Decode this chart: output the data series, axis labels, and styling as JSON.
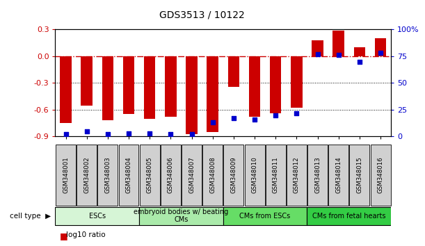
{
  "title": "GDS3513 / 10122",
  "samples": [
    "GSM348001",
    "GSM348002",
    "GSM348003",
    "GSM348004",
    "GSM348005",
    "GSM348006",
    "GSM348007",
    "GSM348008",
    "GSM348009",
    "GSM348010",
    "GSM348011",
    "GSM348012",
    "GSM348013",
    "GSM348014",
    "GSM348015",
    "GSM348016"
  ],
  "log10_ratio": [
    -0.75,
    -0.55,
    -0.72,
    -0.65,
    -0.7,
    -0.68,
    -0.87,
    -0.85,
    -0.34,
    -0.68,
    -0.64,
    -0.58,
    0.18,
    0.29,
    0.1,
    0.2
  ],
  "percentile_rank": [
    2,
    5,
    2,
    3,
    3,
    2,
    2,
    13,
    17,
    16,
    20,
    22,
    77,
    76,
    70,
    78
  ],
  "cell_types": [
    {
      "label": "ESCs",
      "start": 0,
      "end": 4,
      "color": "#d6f5d6"
    },
    {
      "label": "embryoid bodies w/ beating\nCMs",
      "start": 4,
      "end": 8,
      "color": "#aaeaaa"
    },
    {
      "label": "CMs from ESCs",
      "start": 8,
      "end": 12,
      "color": "#66dd66"
    },
    {
      "label": "CMs from fetal hearts",
      "start": 12,
      "end": 16,
      "color": "#33cc44"
    }
  ],
  "bar_color": "#cc0000",
  "dot_color": "#0000cc",
  "ylim_left": [
    -0.9,
    0.3
  ],
  "ylim_right": [
    0,
    100
  ],
  "yticks_left": [
    -0.9,
    -0.6,
    -0.3,
    0.0,
    0.3
  ],
  "yticks_right": [
    0,
    25,
    50,
    75,
    100
  ],
  "ytick_labels_right": [
    "0",
    "25",
    "50",
    "75",
    "100%"
  ],
  "grid_values": [
    -0.3,
    -0.6
  ],
  "zero_line": 0.0,
  "xtick_box_color": "#d0d0d0",
  "bar_width": 0.55
}
